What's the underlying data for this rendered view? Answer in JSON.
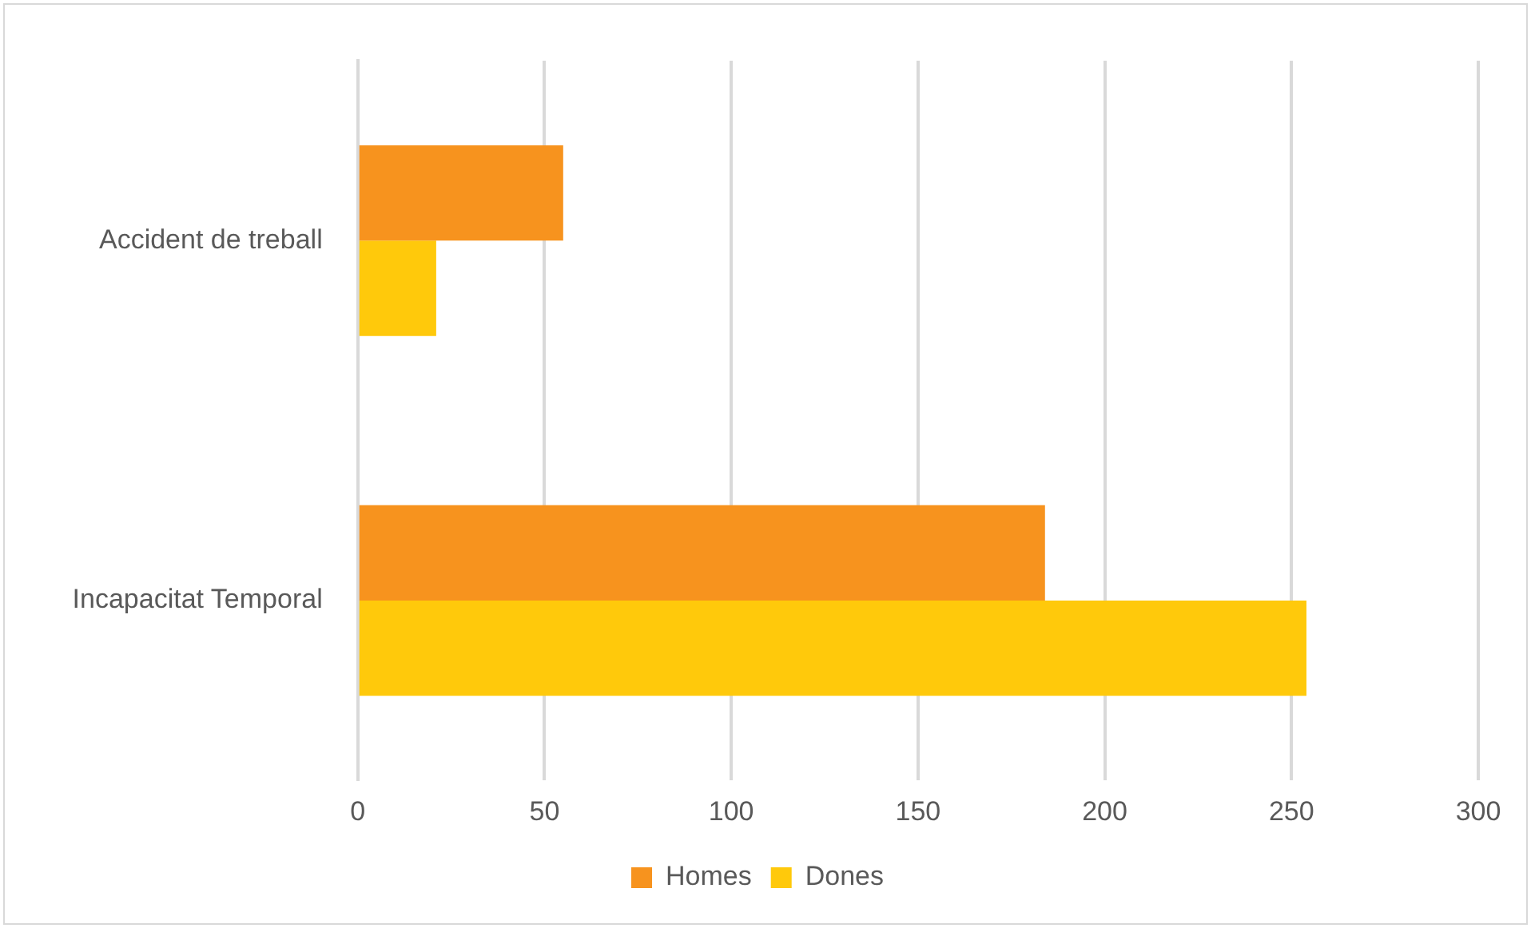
{
  "chart_data": {
    "type": "bar",
    "orientation": "horizontal",
    "categories": [
      "Accident de treball",
      "Incapacitat Temporal"
    ],
    "series": [
      {
        "name": "Homes",
        "color": "#f7931e",
        "values": [
          55,
          184
        ]
      },
      {
        "name": "Dones",
        "color": "#ffc90b",
        "values": [
          21,
          254
        ]
      }
    ],
    "xlim": [
      0,
      300
    ],
    "xticks": [
      0,
      50,
      100,
      150,
      200,
      250,
      300
    ],
    "grid": "x",
    "legend": "bottom"
  }
}
